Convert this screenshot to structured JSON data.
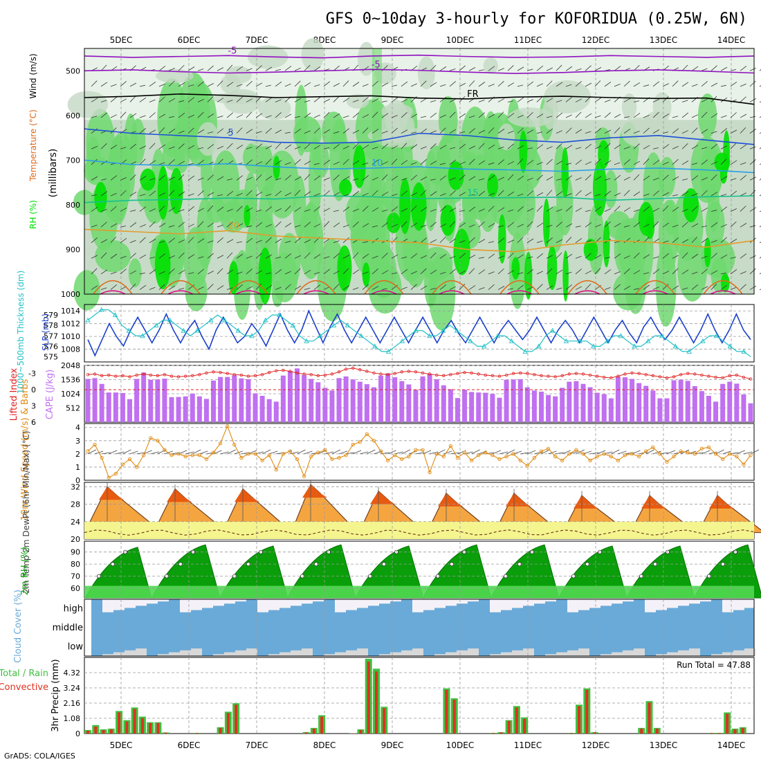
{
  "header": {
    "title": "GFS 0~10day 3-hourly for KOFORIDUA (0.25W, 6N)",
    "footer": "GrADS: COLA/IGES"
  },
  "colors": {
    "rh_dark": "#00e000",
    "rh_mid": "#6fd86f",
    "rh_light": "#c4d8c4",
    "rh_pale": "#e8f2e8",
    "purple": "#9010c0",
    "black": "#000000",
    "blue_dark": "#1c4fd8",
    "blue_light": "#2a9ee8",
    "teal": "#15c08e",
    "orange": "#e29b2b",
    "dark_orange": "#e0691a",
    "magenta": "#e0108a",
    "slp": "#1a3fcc",
    "thick": "#20c0c8",
    "cape": "#c070f0",
    "li": "#e02020",
    "wind": "#e08a10",
    "rh2m_dark": "#0a9e0a",
    "cloud": "#6aaad8",
    "cloud_gap": "#f4f2f8",
    "rain": "#e03020",
    "total": "#40c040"
  },
  "chart_data": [
    {
      "name": "pressure-cross-section",
      "type": "heatmap",
      "days": [
        "5DEC",
        "6DEC",
        "7DEC",
        "8DEC",
        "9DEC",
        "10DEC",
        "11DEC",
        "12DEC",
        "13DEC",
        "14DEC"
      ],
      "ylabel": "(millibars)",
      "yticks": [
        500,
        600,
        700,
        800,
        900,
        1000
      ],
      "ylim": [
        450,
        1000
      ],
      "legend_left": [
        "RH (%)",
        "Temperature (°C)",
        "Wind (m/s)"
      ],
      "contours": [
        {
          "label": "-5",
          "color": "purple",
          "levels": [
            467,
            470,
            468,
            466,
            469,
            471,
            467,
            465,
            468,
            470,
            469,
            466,
            468,
            470,
            467
          ]
        },
        {
          "label": "-5",
          "color": "purple",
          "levels": [
            500,
            498,
            502,
            505,
            503,
            500,
            497,
            499,
            503,
            506,
            504,
            500,
            498,
            501,
            505
          ]
        },
        {
          "label": "FR",
          "color": "black",
          "levels": [
            560,
            557,
            552,
            555,
            560,
            558,
            556,
            561,
            563,
            559,
            557,
            560,
            562,
            561,
            575
          ]
        },
        {
          "label": "5",
          "color": "blue_dark",
          "levels": [
            630,
            640,
            645,
            650,
            660,
            662,
            660,
            640,
            645,
            655,
            660,
            650,
            645,
            655,
            665
          ]
        },
        {
          "label": "10",
          "color": "blue_light",
          "levels": [
            700,
            710,
            712,
            708,
            715,
            720,
            718,
            715,
            720,
            722,
            725,
            720,
            718,
            722,
            728
          ]
        },
        {
          "label": "15",
          "color": "teal",
          "levels": [
            795,
            790,
            788,
            785,
            787,
            780,
            782,
            786,
            785,
            784,
            783,
            790,
            786,
            782,
            780
          ]
        },
        {
          "label": "20",
          "color": "orange",
          "levels": [
            855,
            860,
            865,
            858,
            870,
            875,
            880,
            885,
            900,
            905,
            890,
            880,
            885,
            895,
            880
          ]
        }
      ]
    },
    {
      "name": "slp-thickness",
      "type": "line",
      "ylabel_left": "1000~500mb Thickness (dm)",
      "ylabel_right": "SLP (mb)",
      "thickness_ticks": [
        575,
        576,
        577,
        578,
        579
      ],
      "slp_ticks": [
        1008,
        1010,
        1012,
        1014
      ],
      "slp_ylim": [
        1006,
        1015
      ],
      "series": [
        {
          "name": "SLP",
          "color": "slp",
          "values": [
            1009.5,
            1007,
            1009.5,
            1012,
            1010,
            1008.5,
            1011,
            1013,
            1011,
            1009,
            1011,
            1013.5,
            1011,
            1009,
            1011,
            1012.5,
            1010,
            1008,
            1011,
            1013,
            1011,
            1009,
            1010,
            1012,
            1010.5,
            1008.5,
            1011,
            1013.5,
            1011,
            1009,
            1011,
            1014,
            1011.5,
            1009,
            1011.5,
            1013.5,
            1011,
            1009,
            1011,
            1013,
            1011,
            1009,
            1011,
            1013,
            1011,
            1009,
            1011,
            1013,
            1011,
            1009,
            1011,
            1012.5,
            1010.5,
            1009,
            1011,
            1013,
            1011,
            1009,
            1011,
            1012.5,
            1011,
            1009.5,
            1011,
            1013,
            1011,
            1009,
            1011,
            1012.5,
            1011,
            1009,
            1011,
            1013,
            1011,
            1009,
            1011,
            1012.5,
            1010.5,
            1009,
            1011.5,
            1013,
            1011,
            1009.5,
            1011,
            1013,
            1011,
            1009,
            1011,
            1013.5,
            1011,
            1009,
            1011,
            1013.5,
            1011,
            1009.5
          ]
        },
        {
          "name": "Thickness",
          "color": "thick",
          "values": [
            578.5,
            579,
            579.5,
            579.5,
            579,
            578,
            577.5,
            577,
            577,
            577.5,
            578,
            578.5,
            578.5,
            578,
            577.5,
            577,
            577.5,
            578,
            578.5,
            579,
            578.5,
            578,
            577.5,
            577,
            577,
            577.5,
            578.5,
            579,
            579,
            578.5,
            578,
            577,
            576.5,
            576.5,
            577,
            577.5,
            578,
            578.5,
            578,
            577.5,
            577,
            576.5,
            576,
            575.5,
            575.5,
            576,
            576.5,
            577,
            577.5,
            577.5,
            577,
            577,
            577.5,
            578,
            577.5,
            577,
            576.5,
            576,
            576,
            576.5,
            577,
            577,
            576.5,
            576,
            575.5,
            575.5,
            576,
            577,
            577.5,
            577,
            576.5,
            576.5,
            576.5,
            576.5,
            576,
            576,
            576.5,
            577,
            577,
            576.5,
            576,
            576,
            576.5,
            577,
            577,
            576.5,
            576,
            575.5,
            575.5,
            576,
            576.5,
            577,
            577,
            576.5,
            576,
            575.5,
            575.5,
            575
          ]
        }
      ]
    },
    {
      "name": "cape-lifted-index",
      "type": "bar",
      "ylabel_left": "Lifted Index",
      "ylabel_right": "CAPE (J/kg)",
      "li_ticks": [
        "-3",
        "0",
        "3",
        "6"
      ],
      "cape_ticks": [
        512,
        1024,
        1536,
        2048
      ],
      "cape_ylim": [
        0,
        2048
      ],
      "series": [
        {
          "name": "CAPE",
          "color": "cape",
          "values": [
            1560,
            1590,
            1380,
            1070,
            1070,
            1050,
            830,
            1560,
            1790,
            1530,
            1540,
            1570,
            900,
            910,
            930,
            1030,
            930,
            840,
            1500,
            1630,
            1630,
            1690,
            1580,
            1550,
            1040,
            950,
            830,
            740,
            1680,
            1840,
            1940,
            1700,
            1560,
            1440,
            1240,
            1140,
            1590,
            1650,
            1540,
            1460,
            1370,
            1260,
            1680,
            1760,
            1620,
            1480,
            1360,
            1170,
            1650,
            1740,
            1550,
            1330,
            1190,
            870,
            1170,
            1090,
            1070,
            1060,
            1020,
            880,
            1530,
            1540,
            1550,
            1260,
            1140,
            1100,
            980,
            930,
            1240,
            1460,
            1480,
            1380,
            1260,
            1060,
            1010,
            860,
            1640,
            1620,
            1560,
            1410,
            1310,
            1140,
            860,
            860,
            1510,
            1530,
            1490,
            1300,
            1120,
            950,
            740,
            1380,
            1460,
            1390,
            1000,
            680
          ]
        },
        {
          "name": "Lifted Index",
          "color": "li",
          "values": [
            -2.8,
            -2.9,
            -2.6,
            -2.7,
            -2.5,
            -2.6,
            -2.4,
            -2.7,
            -2.9,
            -2.7,
            -2.6,
            -2.8,
            -2.5,
            -2.4,
            -2.5,
            -2.6,
            -2.8,
            -3.1,
            -3.3,
            -3.2,
            -3.0,
            -2.8,
            -2.7,
            -2.5,
            -2.6,
            -2.8,
            -3.2,
            -3.5,
            -3.6,
            -3.4,
            -3.1,
            -2.9,
            -2.8,
            -2.6,
            -2.7,
            -2.9,
            -3.3,
            -3.8,
            -4.0,
            -3.7,
            -3.4,
            -3.1,
            -2.9,
            -2.8,
            -3.0,
            -3.3,
            -3.4,
            -3.3,
            -3.1,
            -2.9,
            -2.7,
            -2.6,
            -2.8,
            -3.0,
            -3.2,
            -3.1,
            -2.9,
            -2.7,
            -2.6,
            -2.5,
            -2.7,
            -3.0,
            -3.1,
            -3.0,
            -2.8,
            -2.6,
            -2.5,
            -2.4,
            -2.6,
            -2.9,
            -3.0,
            -2.9,
            -2.7,
            -2.5,
            -2.3,
            -2.2,
            -2.5,
            -2.9,
            -3.1,
            -3.0,
            -2.8,
            -2.6,
            -2.4,
            -2.2,
            -2.4,
            -2.8,
            -3.0,
            -2.9,
            -2.7,
            -2.5,
            -2.3,
            -2.2,
            -2.6,
            -2.7,
            -2.3,
            -2.0
          ]
        }
      ]
    },
    {
      "name": "wind-10m",
      "type": "line",
      "ylabel": "10m Wind Speed (m/s) & Barbs",
      "yticks": [
        0,
        1,
        2,
        3,
        4
      ],
      "ylim": [
        0,
        4.3
      ],
      "series": [
        {
          "name": "Speed",
          "color": "wind",
          "values": [
            2.2,
            2.7,
            1.7,
            0.2,
            0.5,
            1.2,
            1.6,
            1.0,
            1.9,
            3.2,
            3.0,
            2.3,
            1.9,
            2.0,
            1.8,
            1.9,
            1.9,
            1.6,
            2.1,
            2.8,
            4.1,
            2.7,
            1.7,
            2.0,
            2.0,
            1.5,
            1.9,
            0.8,
            2.0,
            2.2,
            1.6,
            0.3,
            1.8,
            2.1,
            2.3,
            1.6,
            1.7,
            1.9,
            2.7,
            2.9,
            3.5,
            3.0,
            2.2,
            1.5,
            1.9,
            1.6,
            1.8,
            2.3,
            2.3,
            0.6,
            2.0,
            1.8,
            2.6,
            1.7,
            2.1,
            1.5,
            1.9,
            2.1,
            1.9,
            1.6,
            1.8,
            2.0,
            1.5,
            1.1,
            1.7,
            2.2,
            2.4,
            1.8,
            1.5,
            2.0,
            2.3,
            2.0,
            1.5,
            1.8,
            2.0,
            1.8,
            1.5,
            1.9,
            2.0,
            1.8,
            2.2,
            2.5,
            2.0,
            1.4,
            1.8,
            2.2,
            2.1,
            2.0,
            2.4,
            2.5,
            2.0,
            1.6,
            2.0,
            1.8,
            1.2,
            1.9
          ]
        }
      ]
    },
    {
      "name": "temp-2m",
      "type": "area",
      "ylabel": "2m Temp 2m DewPt (6hr Min/Max) (°C)",
      "yticks": [
        20,
        24,
        28,
        32
      ],
      "ylim": [
        20,
        33
      ],
      "days_max": [
        32,
        31.5,
        31.5,
        32.5,
        31,
        30.5,
        30.5,
        30,
        30,
        30
      ],
      "days_min": [
        23,
        22.5,
        22,
        21.5,
        21.5,
        21.5,
        21.5,
        21.5,
        21.5,
        21.5
      ],
      "dewpoint": 21.5
    },
    {
      "name": "rh-2m",
      "type": "area",
      "ylabel": "2m RH (%)",
      "yticks": [
        60,
        70,
        80,
        90
      ],
      "ylim": [
        52,
        99
      ],
      "days_max": [
        94,
        96,
        95,
        96,
        95,
        96,
        96,
        95,
        95,
        96
      ],
      "days_min": [
        52,
        54,
        54,
        54,
        54,
        54,
        54,
        54,
        54,
        54
      ]
    },
    {
      "name": "cloud-cover",
      "type": "bar",
      "ylabel": "Cloud Cover (%)",
      "levels": [
        "high",
        "middle",
        "low"
      ]
    },
    {
      "name": "precip-3hr",
      "type": "bar",
      "ylabel": "3hr Precip (mm)",
      "legend_left": [
        "Total / Rain",
        "Convective"
      ],
      "yticks": [
        "1.08",
        "2.16",
        "3.24",
        "4.32"
      ],
      "ylim": [
        0,
        5.4
      ],
      "run_total_label": "Run Total = 47.88",
      "series": [
        {
          "name": "Total",
          "color": "total",
          "values": [
            0.25,
            0.6,
            0.3,
            0.35,
            1.6,
            0.95,
            1.85,
            1.2,
            0.8,
            0.8,
            0.08,
            0,
            0,
            0,
            0.05,
            0,
            0,
            0.45,
            1.55,
            2.15,
            0,
            0,
            0,
            0,
            0,
            0,
            0,
            0,
            0.1,
            0.4,
            1.3,
            0,
            0,
            0,
            0.02,
            0.3,
            5.3,
            4.6,
            1.9,
            0,
            0,
            0,
            0,
            0,
            0,
            0,
            3.2,
            2.5,
            0,
            0,
            0,
            0,
            0.05,
            0.1,
            0.95,
            1.95,
            1.15,
            0,
            0,
            0,
            0,
            0,
            0.05,
            2.05,
            3.2,
            0.1,
            0,
            0,
            0,
            0,
            0,
            0.4,
            2.3,
            0.4,
            0,
            0,
            0,
            0,
            0,
            0,
            0.05,
            0.05,
            1.5,
            0.35,
            0.45,
            0
          ]
        },
        {
          "name": "Convective",
          "color": "rain",
          "values": [
            0.2,
            0.5,
            0.25,
            0.3,
            1.5,
            0.85,
            1.75,
            1.1,
            0.75,
            0.75,
            0.06,
            0,
            0,
            0,
            0.04,
            0,
            0,
            0.4,
            1.45,
            2.05,
            0,
            0,
            0,
            0,
            0,
            0,
            0,
            0,
            0.08,
            0.35,
            1.2,
            0,
            0,
            0,
            0.02,
            0.25,
            5.1,
            4.4,
            1.8,
            0,
            0,
            0,
            0,
            0,
            0,
            0,
            3.1,
            2.4,
            0,
            0,
            0,
            0,
            0.04,
            0.08,
            0.9,
            1.85,
            1.05,
            0,
            0,
            0,
            0,
            0,
            0.04,
            1.95,
            3.1,
            0.08,
            0,
            0,
            0,
            0,
            0,
            0.35,
            2.2,
            0.35,
            0,
            0,
            0,
            0,
            0,
            0,
            0.04,
            0.04,
            1.4,
            0.3,
            0.4,
            0
          ]
        }
      ]
    }
  ]
}
